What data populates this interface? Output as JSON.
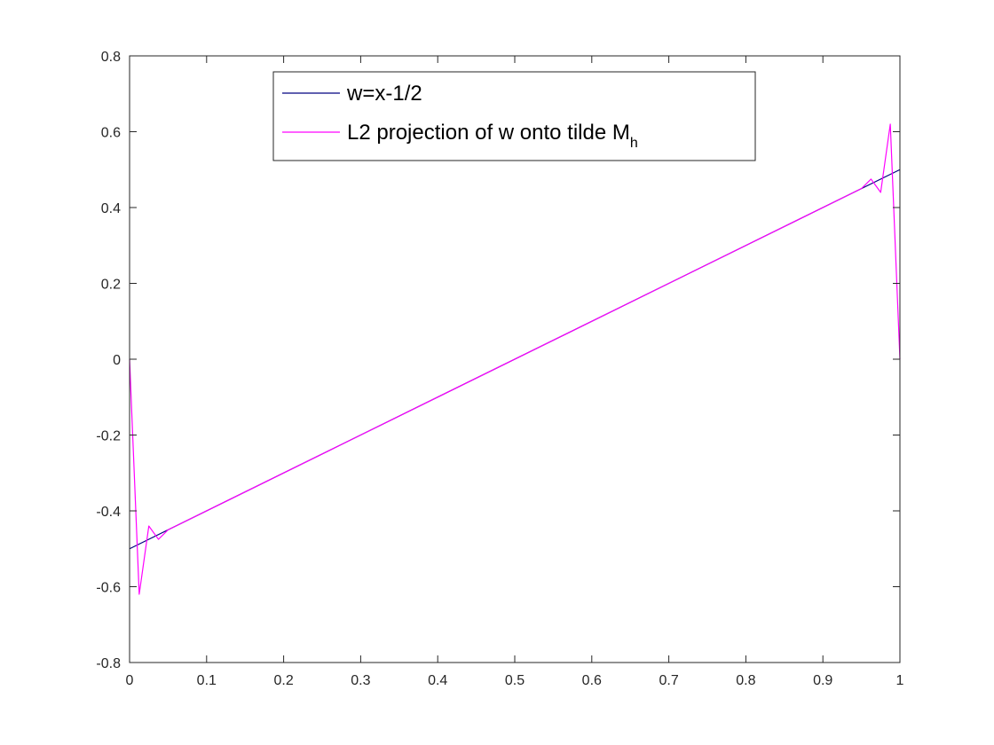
{
  "chart_data": {
    "type": "line",
    "title": "",
    "xlabel": "",
    "ylabel": "",
    "xlim": [
      0,
      1
    ],
    "ylim": [
      -0.8,
      0.8
    ],
    "xticks": [
      0,
      0.1,
      0.2,
      0.3,
      0.4,
      0.5,
      0.6,
      0.7,
      0.8,
      0.9,
      1
    ],
    "xtick_labels": [
      "0",
      "0.1",
      "0.2",
      "0.3",
      "0.4",
      "0.5",
      "0.6",
      "0.7",
      "0.8",
      "0.9",
      "1"
    ],
    "yticks": [
      -0.8,
      -0.6,
      -0.4,
      -0.2,
      0,
      0.2,
      0.4,
      0.6,
      0.8
    ],
    "ytick_labels": [
      "-0.8",
      "-0.6",
      "-0.4",
      "-0.2",
      "0",
      "0.2",
      "0.4",
      "0.6",
      "0.8"
    ],
    "grid": false,
    "legend_position": "top-center",
    "series": [
      {
        "name": "w=x-1/2",
        "color": "#000080",
        "x": [
          0,
          1
        ],
        "y": [
          -0.5,
          0.5
        ]
      },
      {
        "name": "L2 projection of w onto tilde M",
        "name_subscript": "h",
        "color": "#ff00ff",
        "x": [
          0,
          0.0125,
          0.025,
          0.0375,
          0.05,
          0.95,
          0.9625,
          0.975,
          0.9875,
          1
        ],
        "y": [
          0,
          -0.62,
          -0.44,
          -0.475,
          -0.45,
          0.45,
          0.475,
          0.44,
          0.62,
          0
        ]
      }
    ]
  }
}
